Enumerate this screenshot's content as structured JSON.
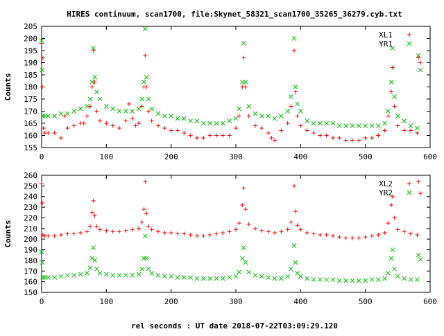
{
  "chart_data": [
    {
      "type": "scatter",
      "title": "HIRES continuum, scan1700, file:Skynet_58321_scan1700_35265_36279.cyb.txt",
      "xlabel": "",
      "ylabel": "Counts",
      "xlim": [
        0,
        600
      ],
      "ylim": [
        155,
        205
      ],
      "xticks": [
        "0",
        "100",
        "200",
        "300",
        "400",
        "500",
        "600"
      ],
      "yticks": [
        "155",
        "160",
        "165",
        "170",
        "175",
        "180",
        "185",
        "190",
        "195",
        "200",
        "205"
      ],
      "grid": false,
      "legend_position": "top-right",
      "series": [
        {
          "name": "XL1",
          "color": "#ff0000",
          "marker": "plus",
          "x": [
            0,
            1,
            2,
            3,
            5,
            10,
            20,
            30,
            35,
            40,
            50,
            60,
            65,
            70,
            75,
            78,
            80,
            82,
            85,
            90,
            100,
            110,
            120,
            130,
            135,
            140,
            145,
            150,
            155,
            158,
            160,
            162,
            165,
            170,
            180,
            190,
            200,
            210,
            220,
            230,
            240,
            250,
            260,
            270,
            280,
            290,
            300,
            305,
            310,
            312,
            315,
            320,
            330,
            340,
            350,
            355,
            360,
            370,
            380,
            385,
            390,
            392,
            395,
            400,
            410,
            420,
            430,
            440,
            450,
            460,
            470,
            480,
            490,
            500,
            510,
            520,
            530,
            535,
            540,
            542,
            545,
            550,
            560,
            570,
            580,
            582,
            585
          ],
          "y": [
            198,
            180,
            192,
            163,
            161,
            161,
            161,
            159,
            168,
            163,
            164,
            165,
            165,
            168,
            172,
            180,
            195,
            182,
            170,
            166,
            165,
            164,
            163,
            166,
            173,
            167,
            164,
            165,
            172,
            180,
            193,
            180,
            170,
            166,
            164,
            163,
            162,
            162,
            161,
            160,
            159,
            159,
            160,
            160,
            160,
            160,
            163,
            168,
            180,
            192,
            180,
            168,
            164,
            163,
            161,
            159,
            158,
            162,
            165,
            172,
            195,
            178,
            168,
            164,
            162,
            161,
            160,
            160,
            159,
            159,
            158,
            158,
            158,
            159,
            159,
            160,
            162,
            168,
            178,
            188,
            172,
            164,
            162,
            162,
            161,
            192,
            190
          ]
        },
        {
          "name": "YR1",
          "color": "#00c000",
          "marker": "cross",
          "x": [
            0,
            1,
            2,
            5,
            10,
            20,
            30,
            40,
            50,
            60,
            70,
            75,
            78,
            80,
            82,
            85,
            90,
            100,
            110,
            120,
            130,
            140,
            150,
            155,
            158,
            160,
            162,
            165,
            170,
            180,
            190,
            200,
            210,
            220,
            230,
            240,
            250,
            260,
            270,
            280,
            290,
            300,
            305,
            310,
            312,
            315,
            320,
            330,
            340,
            350,
            360,
            370,
            380,
            385,
            390,
            392,
            395,
            400,
            410,
            420,
            430,
            440,
            450,
            460,
            470,
            480,
            490,
            500,
            510,
            520,
            530,
            535,
            540,
            542,
            545,
            550,
            560,
            570,
            580,
            582,
            585
          ],
          "y": [
            199,
            187,
            168,
            168,
            168,
            168,
            169,
            169,
            170,
            171,
            172,
            175,
            182,
            196,
            184,
            178,
            175,
            172,
            171,
            170,
            170,
            170,
            171,
            175,
            182,
            204,
            184,
            175,
            171,
            169,
            168,
            168,
            167,
            167,
            166,
            166,
            165,
            165,
            165,
            165,
            166,
            167,
            171,
            182,
            198,
            182,
            172,
            169,
            168,
            168,
            167,
            168,
            170,
            176,
            200,
            180,
            173,
            170,
            166,
            165,
            165,
            165,
            165,
            164,
            164,
            164,
            164,
            164,
            164,
            164,
            165,
            170,
            182,
            196,
            176,
            168,
            166,
            164,
            163,
            193,
            187
          ]
        }
      ]
    },
    {
      "type": "scatter",
      "title": "",
      "xlabel": "rel seconds : UT date 2018-07-22T03:09:29.120",
      "ylabel": "Counts",
      "xlim": [
        0,
        600
      ],
      "ylim": [
        150,
        260
      ],
      "xticks": [
        "0",
        "100",
        "200",
        "300",
        "400",
        "500",
        "600"
      ],
      "yticks": [
        "150",
        "160",
        "170",
        "180",
        "190",
        "200",
        "210",
        "220",
        "230",
        "240",
        "250",
        "260"
      ],
      "grid": false,
      "legend_position": "top-right",
      "series": [
        {
          "name": "XL2",
          "color": "#ff0000",
          "marker": "plus",
          "x": [
            0,
            1,
            2,
            5,
            10,
            20,
            30,
            40,
            50,
            60,
            70,
            75,
            78,
            80,
            82,
            85,
            90,
            100,
            110,
            120,
            130,
            140,
            150,
            155,
            158,
            160,
            162,
            165,
            170,
            180,
            190,
            200,
            210,
            220,
            230,
            240,
            250,
            260,
            270,
            280,
            290,
            300,
            305,
            310,
            312,
            315,
            320,
            330,
            340,
            350,
            360,
            370,
            380,
            385,
            390,
            392,
            395,
            400,
            410,
            420,
            430,
            440,
            450,
            460,
            470,
            480,
            490,
            500,
            510,
            520,
            530,
            535,
            540,
            542,
            545,
            550,
            560,
            570,
            580,
            582,
            585
          ],
          "y": [
            252,
            234,
            204,
            203,
            203,
            203,
            204,
            205,
            205,
            206,
            207,
            212,
            225,
            236,
            222,
            212,
            209,
            208,
            207,
            207,
            208,
            209,
            210,
            216,
            228,
            254,
            224,
            212,
            209,
            207,
            206,
            206,
            205,
            205,
            204,
            203,
            203,
            204,
            205,
            206,
            207,
            209,
            215,
            232,
            248,
            228,
            214,
            210,
            208,
            207,
            206,
            207,
            209,
            216,
            250,
            226,
            213,
            209,
            206,
            205,
            204,
            204,
            203,
            202,
            201,
            201,
            201,
            202,
            203,
            204,
            206,
            215,
            232,
            240,
            220,
            209,
            207,
            205,
            204,
            254,
            243
          ]
        },
        {
          "name": "YR2",
          "color": "#00c000",
          "marker": "cross",
          "x": [
            0,
            1,
            2,
            5,
            10,
            20,
            30,
            40,
            50,
            60,
            70,
            75,
            78,
            80,
            82,
            85,
            90,
            100,
            110,
            120,
            130,
            140,
            150,
            155,
            158,
            160,
            162,
            165,
            170,
            180,
            190,
            200,
            210,
            220,
            230,
            240,
            250,
            260,
            270,
            280,
            290,
            300,
            305,
            310,
            312,
            315,
            320,
            330,
            340,
            350,
            360,
            370,
            380,
            385,
            390,
            392,
            395,
            400,
            410,
            420,
            430,
            440,
            450,
            460,
            470,
            480,
            490,
            500,
            510,
            520,
            530,
            535,
            540,
            542,
            545,
            550,
            560,
            570,
            580,
            582,
            585
          ],
          "y": [
            188,
            178,
            164,
            164,
            164,
            164,
            165,
            166,
            166,
            167,
            168,
            173,
            182,
            192,
            180,
            172,
            168,
            167,
            166,
            166,
            166,
            166,
            167,
            172,
            182,
            203,
            182,
            172,
            168,
            166,
            165,
            165,
            164,
            164,
            164,
            163,
            163,
            163,
            163,
            163,
            164,
            165,
            169,
            182,
            192,
            178,
            169,
            166,
            165,
            164,
            163,
            163,
            165,
            172,
            194,
            178,
            168,
            165,
            163,
            162,
            162,
            162,
            162,
            161,
            161,
            161,
            161,
            161,
            162,
            162,
            163,
            168,
            182,
            190,
            172,
            165,
            163,
            162,
            162,
            185,
            181
          ]
        }
      ]
    }
  ]
}
